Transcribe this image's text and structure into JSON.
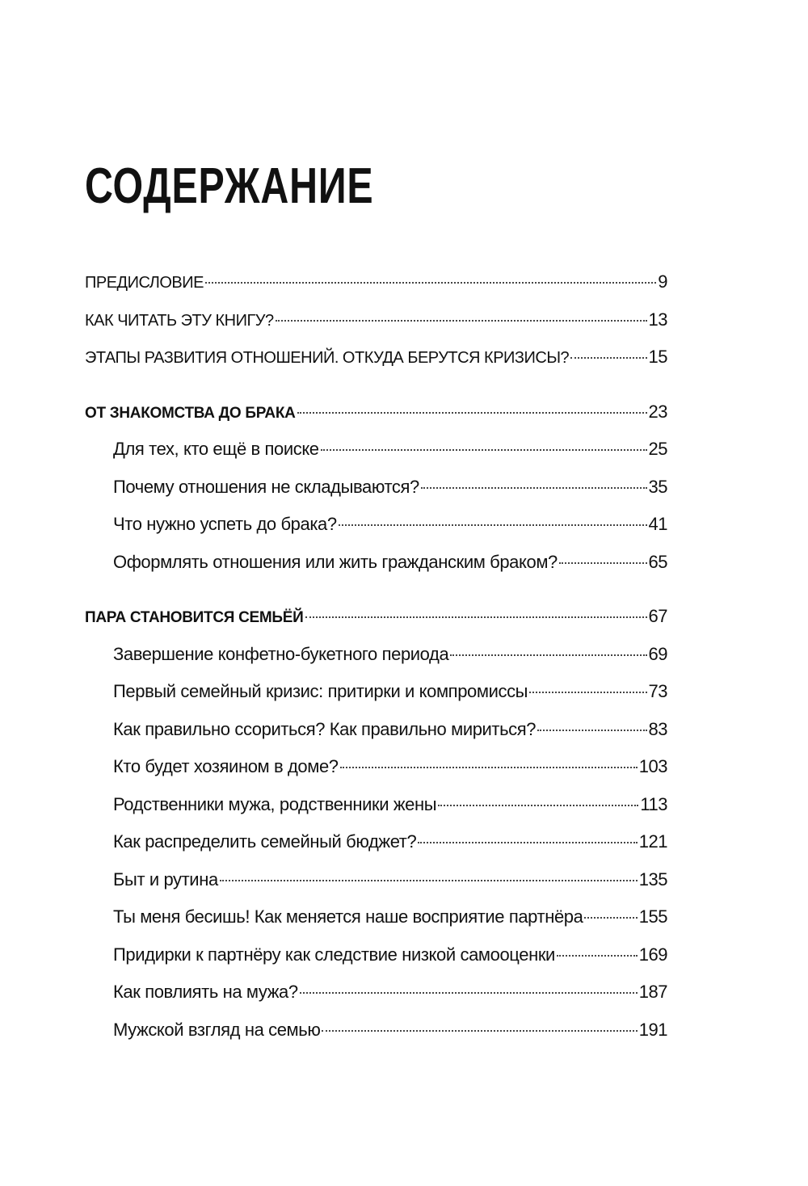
{
  "title": "СОДЕРЖАНИЕ",
  "groups": [
    {
      "items": [
        {
          "label": "ПРЕДИСЛОВИЕ",
          "page": "9"
        },
        {
          "label": "КАК ЧИТАТЬ ЭТУ КНИГУ?",
          "page": "13"
        },
        {
          "label": "ЭТАПЫ РАЗВИТИЯ ОТНОШЕНИЙ. ОТКУДА БЕРУТСЯ КРИЗИСЫ?",
          "page": "15"
        }
      ]
    },
    {
      "section": {
        "label": "ОТ ЗНАКОМСТВА ДО БРАКА",
        "page": "23"
      },
      "items": [
        {
          "label": "Для тех, кто ещё в поиске",
          "page": "25"
        },
        {
          "label": "Почему отношения не складываются?",
          "page": "35"
        },
        {
          "label": "Что нужно успеть до брака?",
          "page": "41"
        },
        {
          "label": "Оформлять отношения или жить гражданским браком?",
          "page": "65"
        }
      ]
    },
    {
      "section": {
        "label": "ПАРА СТАНОВИТСЯ СЕМЬЁЙ",
        "page": "67"
      },
      "items": [
        {
          "label": "Завершение конфетно-букетного периода",
          "page": "69"
        },
        {
          "label": "Первый семейный кризис: притирки и компромиссы",
          "page": "73"
        },
        {
          "label": "Как правильно ссориться? Как правильно мириться?",
          "page": "83"
        },
        {
          "label": "Кто будет хозяином в доме?",
          "page": "103"
        },
        {
          "label": "Родственники мужа, родственники жены",
          "page": "113"
        },
        {
          "label": "Как распределить семейный бюджет?",
          "page": "121"
        },
        {
          "label": "Быт и рутина",
          "page": "135"
        },
        {
          "label": "Ты меня бесишь! Как меняется наше восприятие партнёра",
          "page": "155"
        },
        {
          "label": "Придирки к партнёру как следствие низкой самооценки",
          "page": "169"
        },
        {
          "label": "Как повлиять на мужа?",
          "page": "187"
        },
        {
          "label": "Мужской взгляд на семью",
          "page": "191"
        }
      ]
    }
  ]
}
